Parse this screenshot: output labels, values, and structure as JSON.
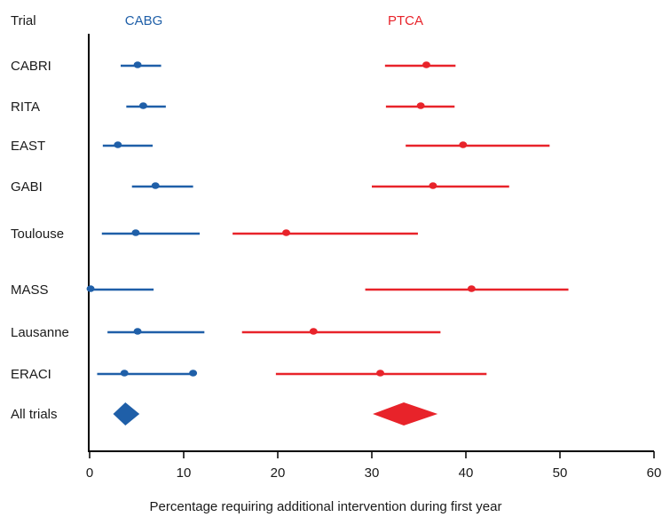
{
  "chart_data": {
    "type": "forest",
    "xlabel": "Percentage requiring additional intervention during first year",
    "xlim": [
      0,
      60
    ],
    "xticks": [
      0,
      10,
      20,
      30,
      40,
      50,
      60
    ],
    "row_header": "Trial",
    "colors": {
      "CABG": "#1f5fa8",
      "PTCA": "#e8232a",
      "axis": "#000000"
    },
    "series": [
      {
        "name": "CABG",
        "rows": [
          {
            "trial": "CABRI",
            "point": 5.1,
            "low": 3.3,
            "high": 7.6
          },
          {
            "trial": "RITA",
            "point": 5.7,
            "low": 3.9,
            "high": 8.1
          },
          {
            "trial": "EAST",
            "point": 3.0,
            "low": 1.4,
            "high": 6.7
          },
          {
            "trial": "GABI",
            "point": 7.0,
            "low": 4.5,
            "high": 11.0
          },
          {
            "trial": "Toulouse",
            "point": 4.9,
            "low": 1.3,
            "high": 11.7
          },
          {
            "trial": "MASS",
            "point": 0.1,
            "low": 0.0,
            "high": 6.8
          },
          {
            "trial": "Lausanne",
            "point": 5.1,
            "low": 1.9,
            "high": 12.2
          },
          {
            "trial": "ERACI",
            "point": 3.7,
            "low": 0.8,
            "high": 11.3,
            "extra_point": 11.0
          }
        ],
        "pooled": {
          "trial": "All trials",
          "point": 3.8,
          "low": 2.5,
          "high": 5.3
        }
      },
      {
        "name": "PTCA",
        "rows": [
          {
            "trial": "CABRI",
            "point": 35.8,
            "low": 31.4,
            "high": 38.9
          },
          {
            "trial": "RITA",
            "point": 35.2,
            "low": 31.5,
            "high": 38.8
          },
          {
            "trial": "EAST",
            "point": 39.7,
            "low": 33.6,
            "high": 48.9
          },
          {
            "trial": "GABI",
            "point": 36.5,
            "low": 30.0,
            "high": 44.6
          },
          {
            "trial": "Toulouse",
            "point": 20.9,
            "low": 15.2,
            "high": 34.9
          },
          {
            "trial": "MASS",
            "point": 40.6,
            "low": 29.3,
            "high": 50.9
          },
          {
            "trial": "Lausanne",
            "point": 23.8,
            "low": 16.2,
            "high": 37.3
          },
          {
            "trial": "ERACI",
            "point": 30.9,
            "low": 19.8,
            "high": 42.2
          }
        ],
        "pooled": {
          "trial": "All trials",
          "point": 33.4,
          "low": 30.1,
          "high": 37.0
        }
      }
    ]
  }
}
